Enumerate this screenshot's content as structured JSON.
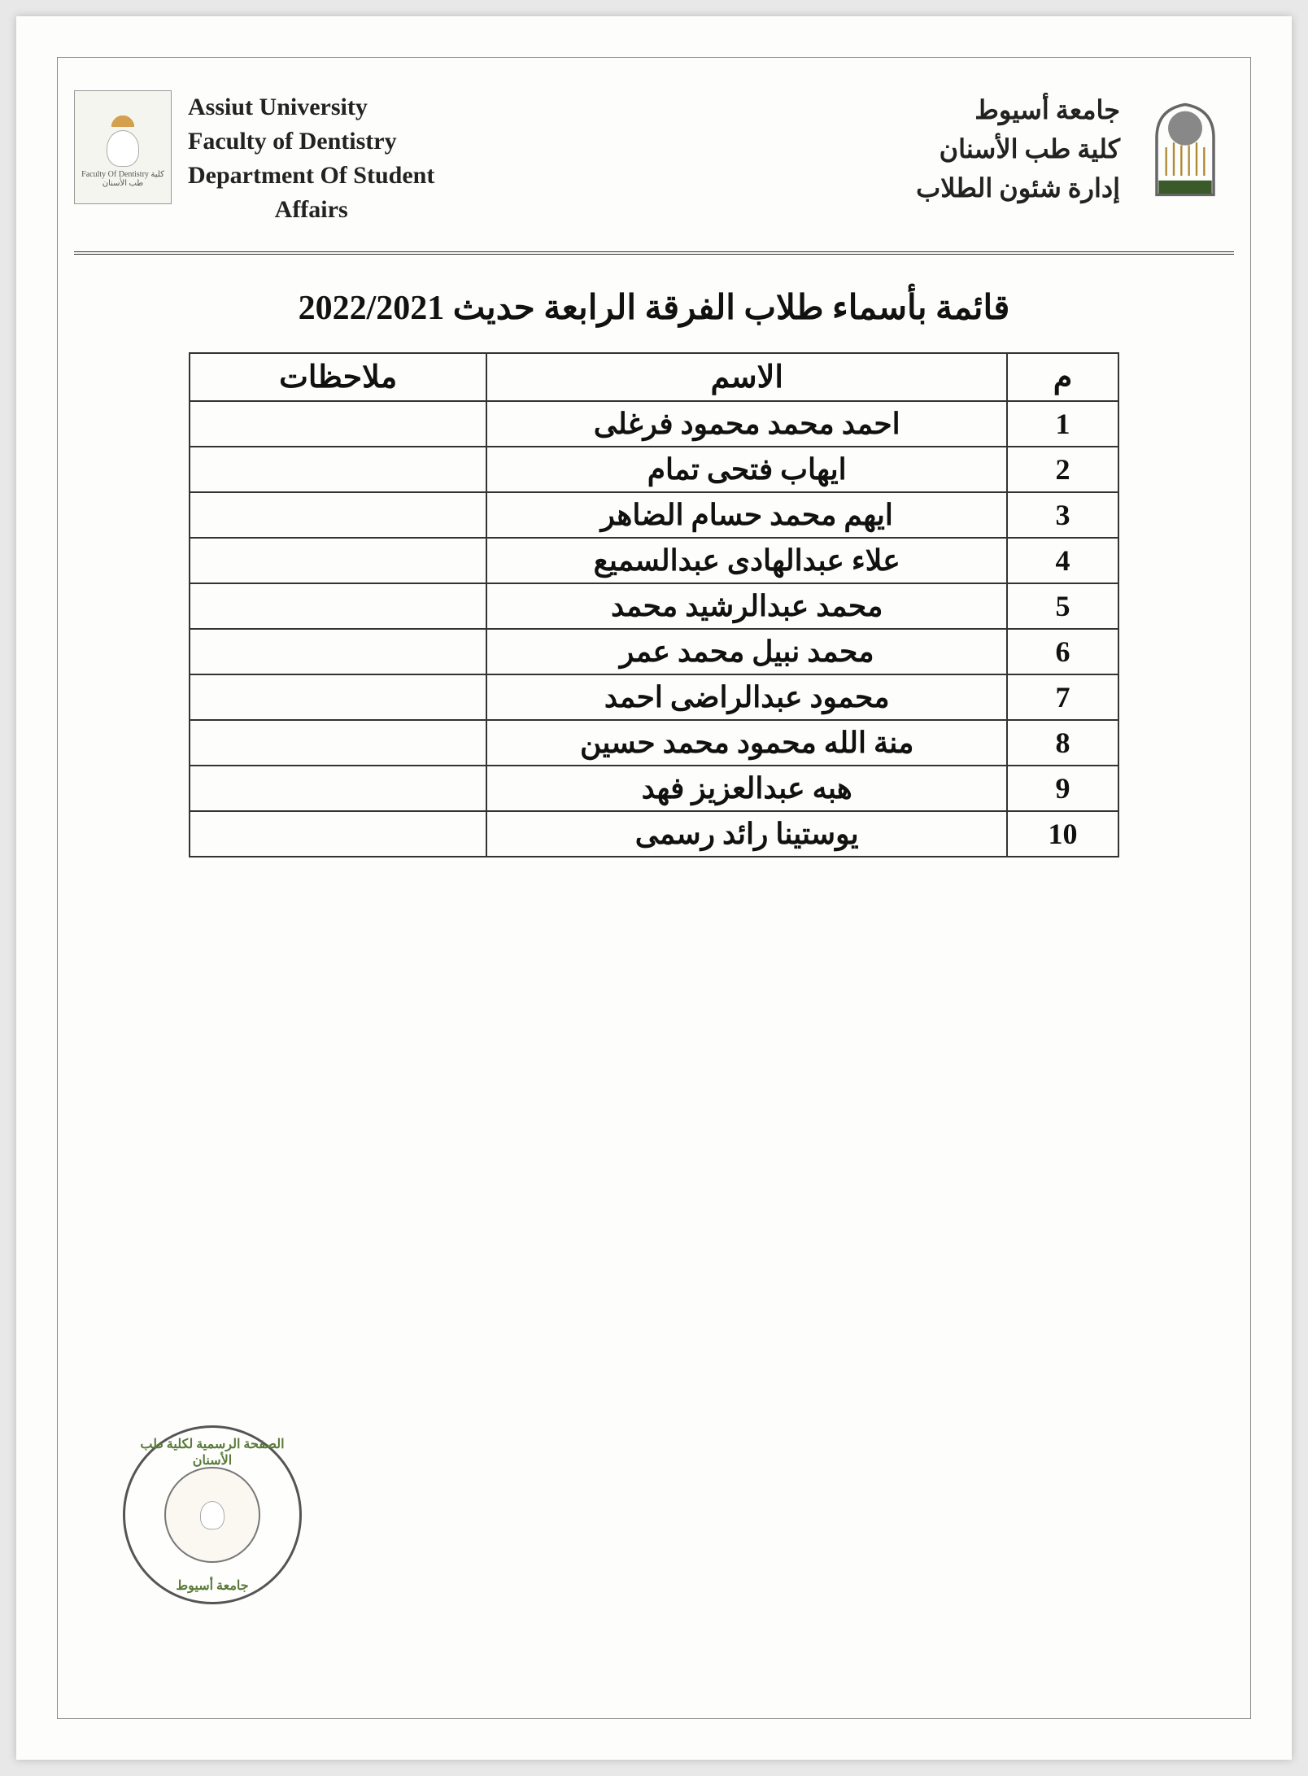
{
  "header": {
    "english": {
      "line1": "Assiut University",
      "line2": "Faculty of Dentistry",
      "line3": "Department Of Student",
      "line4": "Affairs"
    },
    "arabic": {
      "line1": "جامعة أسيوط",
      "line2": "كلية طب الأسنان",
      "line3": "إدارة شئون الطلاب"
    },
    "logo_left_caption": "Faculty Of Dentistry\nكلية طب الأسنان"
  },
  "title": "قائمة بأسماء طلاب الفرقة الرابعة حديث 2022/2021",
  "table": {
    "columns": {
      "notes": "ملاحظات",
      "name": "الاسم",
      "num": "م"
    },
    "col_widths": {
      "notes": "32%",
      "name": "56%",
      "num": "12%"
    },
    "border_color": "#333333",
    "font_size_header": 38,
    "font_size_cell": 36,
    "rows": [
      {
        "num": "1",
        "name": "احمد محمد محمود فرغلى",
        "notes": ""
      },
      {
        "num": "2",
        "name": "ايهاب فتحى تمام",
        "notes": ""
      },
      {
        "num": "3",
        "name": "ايهم محمد حسام الضاهر",
        "notes": ""
      },
      {
        "num": "4",
        "name": "علاء عبدالهادى عبدالسميع",
        "notes": ""
      },
      {
        "num": "5",
        "name": "محمد عبدالرشيد محمد",
        "notes": ""
      },
      {
        "num": "6",
        "name": "محمد نبيل محمد عمر",
        "notes": ""
      },
      {
        "num": "7",
        "name": "محمود عبدالراضى احمد",
        "notes": ""
      },
      {
        "num": "8",
        "name": "منة الله محمود محمد حسين",
        "notes": ""
      },
      {
        "num": "9",
        "name": "هبه عبدالعزيز فهد",
        "notes": ""
      },
      {
        "num": "10",
        "name": "يوستينا رائد رسمى",
        "notes": ""
      }
    ]
  },
  "stamp": {
    "text_top": "الصفحة الرسمية لكلية طب الأسنان",
    "text_bottom": "جامعة أسيوط",
    "border_color": "#555555",
    "text_color": "#5a7a3a"
  },
  "colors": {
    "page_bg": "#fdfdfb",
    "text": "#111111",
    "frame_border": "#888888",
    "divider": "#333333"
  }
}
